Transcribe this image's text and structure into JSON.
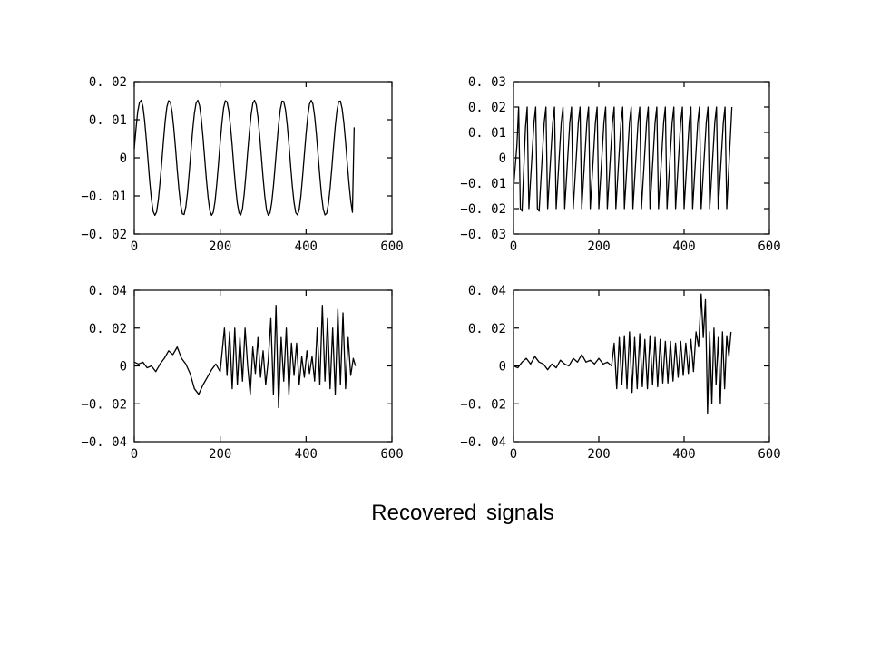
{
  "caption": "Recovered signals",
  "chart_data": [
    {
      "type": "line",
      "xlim": [
        0,
        600
      ],
      "ylim": [
        -0.02,
        0.02
      ],
      "x_ticks": [
        0,
        200,
        400,
        600
      ],
      "x_tick_labels": [
        "0",
        "200",
        "400",
        "600"
      ],
      "y_ticks": [
        0.02,
        0.01,
        0,
        -0.01,
        -0.02
      ],
      "y_tick_labels": [
        "0. 02",
        "0. 01",
        "0",
        "−0. 01",
        "−0. 02"
      ],
      "grid": false,
      "series": [
        {
          "x": [
            0,
            4,
            8,
            12,
            16,
            20,
            24,
            28,
            32,
            36,
            40,
            44,
            48,
            52,
            56,
            60,
            64,
            68,
            72,
            76,
            80,
            84,
            88,
            92,
            96,
            100,
            104,
            108,
            112,
            116,
            120,
            124,
            128,
            132,
            136,
            140,
            144,
            148,
            152,
            156,
            160,
            164,
            168,
            172,
            176,
            180,
            184,
            188,
            192,
            196,
            200,
            204,
            208,
            212,
            216,
            220,
            224,
            228,
            232,
            236,
            240,
            244,
            248,
            252,
            256,
            260,
            264,
            268,
            272,
            276,
            280,
            284,
            288,
            292,
            296,
            300,
            304,
            308,
            312,
            316,
            320,
            324,
            328,
            332,
            336,
            340,
            344,
            348,
            352,
            356,
            360,
            364,
            368,
            372,
            376,
            380,
            384,
            388,
            392,
            396,
            400,
            404,
            408,
            412,
            416,
            420,
            424,
            428,
            432,
            436,
            440,
            444,
            448,
            452,
            456,
            460,
            464,
            468,
            472,
            476,
            480,
            484,
            488,
            492,
            496,
            500,
            504,
            508,
            512
          ],
          "y": [
            0.0024,
            0.0076,
            0.0121,
            0.0145,
            0.0151,
            0.0136,
            0.0099,
            0.0049,
            -0.0006,
            -0.0063,
            -0.0109,
            -0.0141,
            -0.0151,
            -0.0142,
            -0.0111,
            -0.0064,
            -0.0012,
            0.0045,
            0.0097,
            0.0134,
            0.015,
            0.0146,
            0.0121,
            0.0078,
            0.0026,
            -0.0031,
            -0.0083,
            -0.0124,
            -0.0147,
            -0.0149,
            -0.0129,
            -0.0091,
            -0.0038,
            0.0019,
            0.0073,
            0.0117,
            0.0144,
            0.0151,
            0.0137,
            0.0103,
            0.0054,
            -0.0002,
            -0.0058,
            -0.0105,
            -0.0139,
            -0.0151,
            -0.0143,
            -0.0115,
            -0.007,
            -0.0017,
            0.004,
            0.0091,
            0.0131,
            0.015,
            0.0147,
            0.0124,
            0.0083,
            0.0032,
            -0.0026,
            -0.0078,
            -0.012,
            -0.0145,
            -0.015,
            -0.0133,
            -0.0095,
            -0.0043,
            0.0014,
            0.0067,
            0.0113,
            0.0143,
            0.0151,
            0.0139,
            0.0106,
            0.0058,
            0.0002,
            -0.0053,
            -0.0102,
            -0.0137,
            -0.0151,
            -0.0145,
            -0.0118,
            -0.0075,
            -0.0022,
            0.0034,
            0.0087,
            0.0127,
            0.0149,
            0.0148,
            0.0127,
            0.0088,
            0.0037,
            -0.002,
            -0.0074,
            -0.0117,
            -0.0144,
            -0.015,
            -0.0136,
            -0.01,
            -0.0048,
            0.0008,
            0.0063,
            0.0109,
            0.0141,
            0.0151,
            0.0141,
            0.0109,
            0.0063,
            0.0008,
            -0.0048,
            -0.0098,
            -0.0134,
            -0.015,
            -0.0146,
            -0.0121,
            -0.008,
            -0.0027,
            0.003,
            0.0083,
            0.0124,
            0.0148,
            0.0149,
            0.0129,
            0.0092,
            0.0042,
            -0.0015,
            -0.0068,
            -0.0113,
            -0.0143,
            0.008
          ]
        }
      ]
    },
    {
      "type": "line",
      "xlim": [
        0,
        600
      ],
      "ylim": [
        -0.03,
        0.03
      ],
      "x_ticks": [
        0,
        200,
        400,
        600
      ],
      "x_tick_labels": [
        "0",
        "200",
        "400",
        "600"
      ],
      "y_ticks": [
        0.03,
        0.02,
        0.01,
        0,
        -0.01,
        -0.02,
        -0.03
      ],
      "y_tick_labels": [
        "0. 03",
        "0. 02",
        "0. 01",
        "0",
        "−0. 01",
        "−0. 02",
        "−0. 03"
      ],
      "grid": false,
      "series": [
        {
          "x": [
            0,
            8,
            12,
            16,
            20,
            28,
            32,
            36,
            48,
            52,
            56,
            60,
            72,
            76,
            80,
            92,
            96,
            100,
            112,
            116,
            120,
            132,
            136,
            140,
            152,
            156,
            160,
            172,
            176,
            180,
            192,
            196,
            200,
            212,
            216,
            220,
            232,
            236,
            240,
            252,
            256,
            260,
            272,
            276,
            280,
            292,
            296,
            300,
            312,
            316,
            320,
            332,
            336,
            340,
            352,
            356,
            360,
            372,
            376,
            380,
            392,
            396,
            400,
            412,
            416,
            420,
            432,
            436,
            440,
            452,
            456,
            460,
            472,
            476,
            480,
            492,
            496,
            500,
            512
          ],
          "y": [
            -0.012,
            0.005,
            0.02,
            -0.02,
            -0.021,
            0.012,
            0.02,
            -0.02,
            0.014,
            0.02,
            -0.02,
            -0.021,
            0.014,
            0.02,
            -0.02,
            0.014,
            0.02,
            -0.02,
            0.014,
            0.02,
            -0.02,
            0.014,
            0.02,
            -0.02,
            0.014,
            0.02,
            -0.02,
            0.014,
            0.02,
            -0.02,
            0.014,
            0.02,
            -0.02,
            0.014,
            0.02,
            -0.02,
            0.014,
            0.02,
            -0.02,
            0.014,
            0.02,
            -0.02,
            0.014,
            0.02,
            -0.02,
            0.014,
            0.02,
            -0.02,
            0.014,
            0.02,
            -0.02,
            0.014,
            0.02,
            -0.02,
            0.014,
            0.02,
            -0.02,
            0.014,
            0.02,
            -0.02,
            0.014,
            0.02,
            -0.02,
            0.014,
            0.02,
            -0.02,
            0.014,
            0.02,
            -0.02,
            0.014,
            0.02,
            -0.02,
            0.014,
            0.02,
            -0.02,
            0.014,
            0.02,
            -0.02,
            0.02
          ]
        }
      ]
    },
    {
      "type": "line",
      "xlim": [
        0,
        600
      ],
      "ylim": [
        -0.04,
        0.04
      ],
      "x_ticks": [
        0,
        200,
        400,
        600
      ],
      "x_tick_labels": [
        "0",
        "200",
        "400",
        "600"
      ],
      "y_ticks": [
        0.04,
        0.02,
        0,
        -0.02,
        -0.04
      ],
      "y_tick_labels": [
        "0. 04",
        "0. 02",
        "0",
        "−0. 02",
        "−0. 04"
      ],
      "grid": false,
      "series": [
        {
          "x": [
            0,
            10,
            20,
            30,
            40,
            50,
            60,
            70,
            80,
            90,
            100,
            110,
            120,
            130,
            140,
            150,
            160,
            170,
            180,
            190,
            200,
            210,
            216,
            222,
            228,
            234,
            240,
            246,
            252,
            258,
            264,
            270,
            276,
            282,
            288,
            294,
            300,
            306,
            312,
            318,
            324,
            330,
            336,
            342,
            348,
            354,
            360,
            366,
            372,
            378,
            384,
            390,
            396,
            402,
            408,
            414,
            420,
            426,
            432,
            438,
            444,
            450,
            456,
            462,
            468,
            474,
            480,
            486,
            492,
            498,
            504,
            510,
            515
          ],
          "y": [
            0.002,
            0.001,
            0.002,
            -0.001,
            0.0,
            -0.003,
            0.001,
            0.004,
            0.008,
            0.006,
            0.01,
            0.004,
            0.001,
            -0.004,
            -0.012,
            -0.015,
            -0.01,
            -0.006,
            -0.002,
            0.001,
            -0.003,
            0.02,
            -0.005,
            0.018,
            -0.012,
            0.02,
            -0.01,
            0.015,
            -0.008,
            0.02,
            0.0,
            -0.015,
            0.01,
            -0.004,
            0.015,
            -0.006,
            0.008,
            -0.01,
            0.003,
            0.025,
            -0.015,
            0.032,
            -0.022,
            0.015,
            -0.008,
            0.02,
            -0.015,
            0.012,
            -0.005,
            0.012,
            -0.01,
            0.005,
            -0.006,
            0.008,
            -0.004,
            0.005,
            -0.008,
            0.02,
            -0.01,
            0.032,
            -0.008,
            0.025,
            -0.012,
            0.02,
            -0.015,
            0.03,
            -0.01,
            0.028,
            -0.012,
            0.015,
            -0.005,
            0.004,
            0.0
          ]
        }
      ]
    },
    {
      "type": "line",
      "xlim": [
        0,
        600
      ],
      "ylim": [
        -0.04,
        0.04
      ],
      "x_ticks": [
        0,
        200,
        400,
        600
      ],
      "x_tick_labels": [
        "0",
        "200",
        "400",
        "600"
      ],
      "y_ticks": [
        0.04,
        0.02,
        0,
        -0.02,
        -0.04
      ],
      "y_tick_labels": [
        "0. 04",
        "0. 02",
        "0",
        "−0. 02",
        "−0. 04"
      ],
      "grid": false,
      "series": [
        {
          "x": [
            0,
            10,
            20,
            30,
            40,
            50,
            60,
            70,
            80,
            90,
            100,
            110,
            120,
            130,
            140,
            150,
            160,
            170,
            180,
            190,
            200,
            210,
            220,
            230,
            236,
            242,
            248,
            254,
            260,
            266,
            272,
            278,
            284,
            290,
            296,
            302,
            308,
            314,
            320,
            326,
            332,
            338,
            344,
            350,
            356,
            362,
            368,
            374,
            380,
            386,
            392,
            398,
            404,
            410,
            416,
            422,
            428,
            434,
            440,
            445,
            450,
            455,
            460,
            465,
            470,
            475,
            480,
            485,
            490,
            495,
            500,
            505,
            510
          ],
          "y": [
            0.0,
            -0.001,
            0.002,
            0.004,
            0.001,
            0.005,
            0.002,
            0.001,
            -0.002,
            0.001,
            -0.001,
            0.003,
            0.001,
            0.0,
            0.004,
            0.002,
            0.006,
            0.002,
            0.003,
            0.001,
            0.004,
            0.001,
            0.002,
            0.0,
            0.012,
            -0.012,
            0.015,
            -0.01,
            0.016,
            -0.012,
            0.018,
            -0.014,
            0.015,
            -0.012,
            0.017,
            -0.011,
            0.014,
            -0.012,
            0.016,
            -0.01,
            0.015,
            -0.011,
            0.014,
            -0.009,
            0.013,
            -0.009,
            0.013,
            -0.008,
            0.012,
            -0.006,
            0.013,
            -0.005,
            0.012,
            -0.004,
            0.014,
            -0.003,
            0.018,
            0.01,
            0.038,
            0.015,
            0.035,
            -0.025,
            0.018,
            -0.02,
            0.02,
            -0.01,
            0.015,
            -0.02,
            0.018,
            -0.012,
            0.016,
            0.005,
            0.018
          ]
        }
      ]
    }
  ]
}
